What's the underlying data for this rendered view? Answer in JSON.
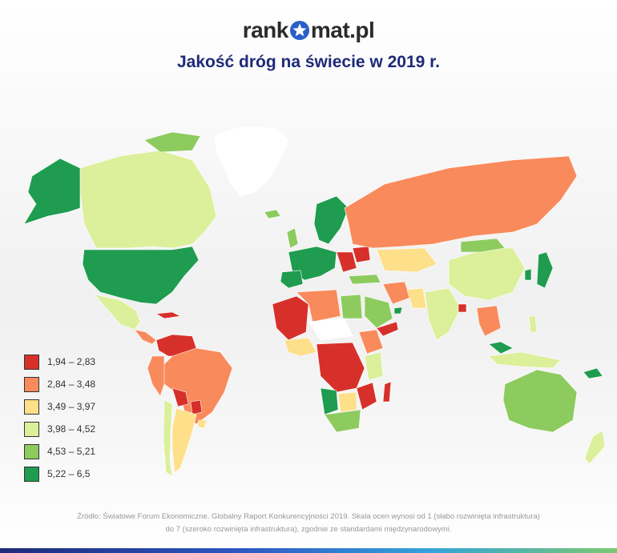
{
  "brand": {
    "name_part1": "rank",
    "name_part2": "mat.pl"
  },
  "title": "Jakość dróg na świecie w 2019 r.",
  "colors": {
    "c1": "#d7302a",
    "c2": "#f98a5c",
    "c3": "#fedf8a",
    "c4": "#dcef9b",
    "c5": "#8dcb5f",
    "c6": "#1f9c4f",
    "nodata": "#ffffff",
    "title": "#1e2a78"
  },
  "legend": [
    {
      "label": "1,94 – 2,83",
      "color": "#d7302a"
    },
    {
      "label": "2,84 – 3,48",
      "color": "#f98a5c"
    },
    {
      "label": "3,49 – 3,97",
      "color": "#fedf8a"
    },
    {
      "label": "3,98 – 4,52",
      "color": "#dcef9b"
    },
    {
      "label": "4,53 – 5,21",
      "color": "#8dcb5f"
    },
    {
      "label": "5,22 – 6,5",
      "color": "#1f9c4f"
    }
  ],
  "footer": {
    "line1": "Źródło: Światowe Forum Ekonomiczne. Globalny Raport Konkurencyjności 2019. Skala ocen wynosi od 1 (słabo rozwinięta infrastruktura)",
    "line2": "do 7 (szeroko rozwinięta infrastruktura), zgodnie ze standardami międzynarodowymi."
  }
}
